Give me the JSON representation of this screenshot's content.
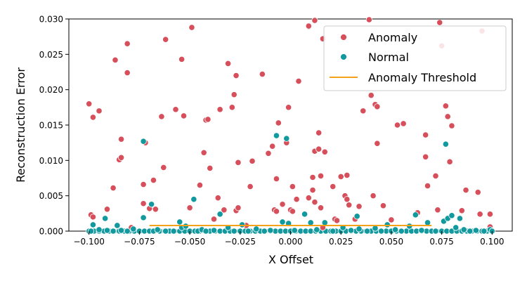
{
  "chart_data": {
    "type": "scatter",
    "xlabel": "X Offset",
    "ylabel": "Reconstruction Error",
    "xlim": [
      -0.11,
      0.11
    ],
    "ylim": [
      0,
      0.03
    ],
    "xticks": [
      -0.1,
      -0.075,
      -0.05,
      -0.025,
      0.0,
      0.025,
      0.05,
      0.075,
      0.1
    ],
    "xtick_labels": [
      "−0.100",
      "−0.075",
      "−0.050",
      "−0.025",
      "0.000",
      "0.025",
      "0.050",
      "0.075",
      "0.100"
    ],
    "yticks": [
      0,
      0.005,
      0.01,
      0.015,
      0.02,
      0.025,
      0.03
    ],
    "ytick_labels": [
      "0.000",
      "0.005",
      "0.010",
      "0.015",
      "0.020",
      "0.025",
      "0.030"
    ],
    "grid": false,
    "legend_position": "top-right",
    "series": [
      {
        "name": "Anomaly",
        "color": "#d64f5b",
        "points": [
          [
            -0.1,
            0.018
          ],
          [
            -0.099,
            0.0023
          ],
          [
            -0.098,
            0.0161
          ],
          [
            -0.098,
            0.002
          ],
          [
            -0.095,
            0.017
          ],
          [
            -0.091,
            0.0031
          ],
          [
            -0.088,
            0.0061
          ],
          [
            -0.087,
            0.0242
          ],
          [
            -0.084,
            0.013
          ],
          [
            -0.085,
            0.0101
          ],
          [
            -0.084,
            0.0104
          ],
          [
            -0.081,
            0.0265
          ],
          [
            -0.081,
            0.0224
          ],
          [
            -0.079,
            0.0005
          ],
          [
            -0.073,
            0.0039
          ],
          [
            -0.073,
            0.0066
          ],
          [
            -0.072,
            0.0125
          ],
          [
            -0.07,
            0.0032
          ],
          [
            -0.068,
            0.0072
          ],
          [
            -0.067,
            0.0031
          ],
          [
            -0.064,
            0.0162
          ],
          [
            -0.063,
            0.009
          ],
          [
            -0.062,
            0.0271
          ],
          [
            -0.057,
            0.0172
          ],
          [
            -0.054,
            0.0243
          ],
          [
            -0.053,
            0.0163
          ],
          [
            -0.05,
            0.0033
          ],
          [
            -0.049,
            0.0288
          ],
          [
            -0.045,
            0.0065
          ],
          [
            -0.043,
            0.0111
          ],
          [
            -0.042,
            0.0157
          ],
          [
            -0.041,
            0.0158
          ],
          [
            -0.04,
            0.0089
          ],
          [
            -0.038,
            0.0017
          ],
          [
            -0.036,
            0.0047
          ],
          [
            -0.035,
            0.0172
          ],
          [
            -0.033,
            0.003
          ],
          [
            -0.031,
            0.0237
          ],
          [
            -0.029,
            0.0175
          ],
          [
            -0.028,
            0.0193
          ],
          [
            -0.027,
            0.022
          ],
          [
            -0.026,
            0.0097
          ],
          [
            -0.027,
            0.0029
          ],
          [
            -0.026,
            0.0033
          ],
          [
            -0.022,
            0.0008
          ],
          [
            -0.02,
            0.0063
          ],
          [
            -0.019,
            0.0099
          ],
          [
            -0.014,
            0.0222
          ],
          [
            -0.011,
            0.011
          ],
          [
            -0.009,
            0.012
          ],
          [
            -0.008,
            0.003
          ],
          [
            -0.007,
            0.0028
          ],
          [
            -0.007,
            0.0074
          ],
          [
            -0.006,
            0.0153
          ],
          [
            -0.004,
            0.0038
          ],
          [
            -0.002,
            0.0125
          ],
          [
            -0.001,
            0.0175
          ],
          [
            0.0,
            0.003
          ],
          [
            0.001,
            0.0028
          ],
          [
            0.001,
            0.0063
          ],
          [
            0.003,
            0.0045
          ],
          [
            0.004,
            0.0212
          ],
          [
            0.009,
            0.0047
          ],
          [
            0.009,
            0.0289
          ],
          [
            0.009,
            0.029
          ],
          [
            0.011,
            0.0058
          ],
          [
            0.011,
            0.0076
          ],
          [
            0.012,
            0.0113
          ],
          [
            0.012,
            0.0041
          ],
          [
            0.012,
            0.0298
          ],
          [
            0.014,
            0.0139
          ],
          [
            0.014,
            0.0116
          ],
          [
            0.015,
            0.0078
          ],
          [
            0.015,
            0.0033
          ],
          [
            0.016,
            0.0272
          ],
          [
            0.016,
            0.0005
          ],
          [
            0.017,
            0.0112
          ],
          [
            0.021,
            0.0063
          ],
          [
            0.022,
            0.0017
          ],
          [
            0.023,
            0.0015
          ],
          [
            0.025,
            0.0077
          ],
          [
            0.027,
            0.005
          ],
          [
            0.028,
            0.0079
          ],
          [
            0.028,
            0.0045
          ],
          [
            0.029,
            0.0037
          ],
          [
            0.032,
            0.0017
          ],
          [
            0.034,
            0.0035
          ],
          [
            0.036,
            0.017
          ],
          [
            0.039,
            0.0299
          ],
          [
            0.04,
            0.0192
          ],
          [
            0.041,
            0.005
          ],
          [
            0.042,
            0.0179
          ],
          [
            0.043,
            0.0176
          ],
          [
            0.043,
            0.0124
          ],
          [
            0.046,
            0.0036
          ],
          [
            0.05,
            0.0016
          ],
          [
            0.053,
            0.015
          ],
          [
            0.056,
            0.0152
          ],
          [
            0.063,
            0.0026
          ],
          [
            0.067,
            0.0136
          ],
          [
            0.067,
            0.0105
          ],
          [
            0.068,
            0.0064
          ],
          [
            0.072,
            0.0078
          ],
          [
            0.073,
            0.003
          ],
          [
            0.074,
            0.0295
          ],
          [
            0.075,
            0.0262
          ],
          [
            0.077,
            0.0177
          ],
          [
            0.078,
            0.0162
          ],
          [
            0.079,
            0.0098
          ],
          [
            0.08,
            0.0149
          ],
          [
            0.085,
            0.0029
          ],
          [
            0.087,
            0.0058
          ],
          [
            0.093,
            0.0055
          ],
          [
            0.094,
            0.0024
          ],
          [
            0.095,
            0.0283
          ],
          [
            0.099,
            0.0024
          ],
          [
            0.099,
            0.0006
          ]
        ]
      },
      {
        "name": "Normal",
        "color": "#11999e",
        "points": [
          [
            -0.099,
            0.0
          ],
          [
            -0.098,
            0.0009
          ],
          [
            -0.095,
            0.0002
          ],
          [
            -0.092,
            0.0018
          ],
          [
            -0.091,
            0.0001
          ],
          [
            -0.088,
            0.0
          ],
          [
            -0.086,
            0.0008
          ],
          [
            -0.084,
            0.0001
          ],
          [
            -0.081,
            0.0
          ],
          [
            -0.078,
            0.0003
          ],
          [
            -0.073,
            0.0127
          ],
          [
            -0.073,
            0.0019
          ],
          [
            -0.069,
            0.0038
          ],
          [
            -0.068,
            0.0
          ],
          [
            -0.066,
            0.0002
          ],
          [
            -0.062,
            0.0
          ],
          [
            -0.058,
            0.0
          ],
          [
            -0.055,
            0.0013
          ],
          [
            -0.054,
            0.0005
          ],
          [
            -0.052,
            0.0007
          ],
          [
            -0.048,
            0.0045
          ],
          [
            -0.046,
            0.0
          ],
          [
            -0.044,
            0.0002
          ],
          [
            -0.042,
            0.0
          ],
          [
            -0.038,
            0.0001
          ],
          [
            -0.035,
            0.0024
          ],
          [
            -0.031,
            0.0005
          ],
          [
            -0.028,
            0.0
          ],
          [
            -0.024,
            0.0009
          ],
          [
            -0.021,
            0.0
          ],
          [
            -0.017,
            0.0003
          ],
          [
            -0.013,
            0.0
          ],
          [
            -0.01,
            0.0001
          ],
          [
            -0.007,
            0.0135
          ],
          [
            -0.004,
            0.0013
          ],
          [
            -0.002,
            0.0131
          ],
          [
            -0.001,
            0.0011
          ],
          [
            0.002,
            0.0001
          ],
          [
            0.007,
            0.0024
          ],
          [
            0.01,
            0.0012
          ],
          [
            0.013,
            0.0002
          ],
          [
            0.017,
            0.0012
          ],
          [
            0.021,
            0.0
          ],
          [
            0.026,
            0.0005
          ],
          [
            0.03,
            0.0001
          ],
          [
            0.033,
            0.0021
          ],
          [
            0.034,
            0.0003
          ],
          [
            0.038,
            0.0
          ],
          [
            0.042,
            0.0004
          ],
          [
            0.045,
            0.0
          ],
          [
            0.048,
            0.0009
          ],
          [
            0.052,
            0.0002
          ],
          [
            0.055,
            0.0
          ],
          [
            0.059,
            0.0007
          ],
          [
            0.062,
            0.0023
          ],
          [
            0.065,
            0.0001
          ],
          [
            0.068,
            0.0012
          ],
          [
            0.072,
            0.0
          ],
          [
            0.076,
            0.0014
          ],
          [
            0.077,
            0.0123
          ],
          [
            0.078,
            0.0018
          ],
          [
            0.08,
            0.0022
          ],
          [
            0.082,
            0.0005
          ],
          [
            0.084,
            0.0018
          ],
          [
            0.086,
            0.0002
          ],
          [
            0.089,
            0.0
          ],
          [
            0.092,
            0.0001
          ],
          [
            0.096,
            0.0
          ],
          [
            0.099,
            0.0002
          ],
          [
            0.1,
            0.0
          ]
        ]
      },
      {
        "name": "Anomaly Threshold",
        "type": "line",
        "color": "#f5a21b",
        "x": [
          -0.07,
          0.07
        ],
        "y": [
          0.0008,
          0.0008
        ]
      }
    ]
  }
}
